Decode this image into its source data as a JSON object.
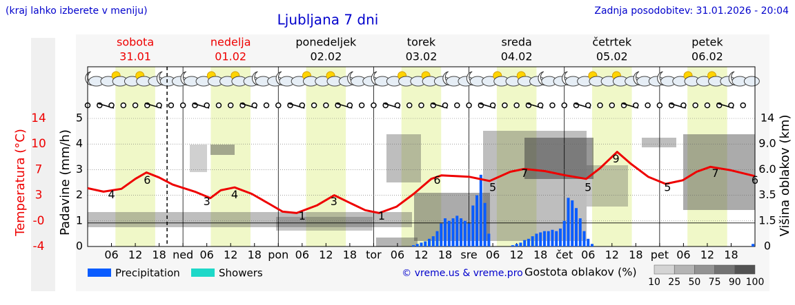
{
  "header": {
    "hint": "(kraj lahko izberete v meniju)",
    "title": "Ljubljana 7 dni",
    "updated": "Zadnja posodobitev: 31.01.2026 - 20:04"
  },
  "chart_data": {
    "type": "meteogram",
    "days": [
      {
        "name": "sobota",
        "date": "31.01",
        "weekend": true
      },
      {
        "name": "nedelja",
        "date": "01.02",
        "weekend": true
      },
      {
        "name": "ponedeljek",
        "date": "02.02",
        "weekend": false
      },
      {
        "name": "torek",
        "date": "03.02",
        "weekend": false
      },
      {
        "name": "sreda",
        "date": "04.02",
        "weekend": false
      },
      {
        "name": "četrtek",
        "date": "05.02",
        "weekend": false
      },
      {
        "name": "petek",
        "date": "06.02",
        "weekend": false
      }
    ],
    "xlim": [
      0,
      168
    ],
    "xticks": [
      {
        "value": 6,
        "label": "06"
      },
      {
        "value": 12,
        "label": "12"
      },
      {
        "value": 18,
        "label": "18"
      },
      {
        "value": 24,
        "label": "ned"
      },
      {
        "value": 30,
        "label": "06"
      },
      {
        "value": 36,
        "label": "12"
      },
      {
        "value": 42,
        "label": "18"
      },
      {
        "value": 48,
        "label": "pon"
      },
      {
        "value": 54,
        "label": "06"
      },
      {
        "value": 60,
        "label": "12"
      },
      {
        "value": 66,
        "label": "18"
      },
      {
        "value": 72,
        "label": "tor"
      },
      {
        "value": 78,
        "label": "06"
      },
      {
        "value": 84,
        "label": "12"
      },
      {
        "value": 90,
        "label": "18"
      },
      {
        "value": 96,
        "label": "sre"
      },
      {
        "value": 102,
        "label": "06"
      },
      {
        "value": 108,
        "label": "12"
      },
      {
        "value": 114,
        "label": "18"
      },
      {
        "value": 120,
        "label": "čet"
      },
      {
        "value": 126,
        "label": "06"
      },
      {
        "value": 132,
        "label": "12"
      },
      {
        "value": 138,
        "label": "18"
      },
      {
        "value": 144,
        "label": "pet"
      },
      {
        "value": 150,
        "label": "06"
      },
      {
        "value": 156,
        "label": "12"
      },
      {
        "value": 162,
        "label": "18"
      }
    ],
    "now_x": 20,
    "daylight": [
      7,
      17
    ],
    "temperature": {
      "axis_label": "Temperatura (°C)",
      "color": "#ee0000",
      "ylim": [
        -4,
        14
      ],
      "yticks": [
        -4,
        {
          "value": -0.4,
          "label": "-0"
        },
        {
          "value": 3.2,
          "label": "3"
        },
        {
          "value": 6.8,
          "label": "7"
        },
        {
          "value": 10.4,
          "label": "10"
        },
        14
      ],
      "x": [
        0,
        4,
        8.5,
        12,
        14.8,
        18,
        21.4,
        27,
        30.9,
        33.5,
        37,
        41.3,
        45.7,
        49.1,
        52.6,
        57.8,
        62.1,
        66.5,
        69.9,
        73.4,
        77.8,
        82.1,
        86.5,
        89.1,
        96,
        101.2,
        106.4,
        109.9,
        115.1,
        120.3,
        125.5,
        129,
        133.3,
        136.8,
        141.1,
        145.5,
        149.8,
        153.3,
        156.8,
        162,
        167.9
      ],
      "values": [
        4.2,
        3.7,
        4.1,
        5.5,
        6.4,
        5.7,
        4.7,
        3.7,
        2.8,
        3.9,
        4.3,
        3.4,
        2.0,
        0.9,
        0.7,
        1.8,
        3.2,
        2.0,
        1.1,
        0.7,
        1.6,
        3.4,
        5.5,
        6.0,
        5.8,
        5.2,
        6.5,
        6.9,
        6.6,
        6.0,
        5.5,
        7.0,
        9.3,
        7.6,
        5.8,
        4.8,
        5.3,
        6.5,
        7.2,
        6.7,
        5.9
      ],
      "labels": {
        "x": [
          6,
          15,
          30,
          37,
          54,
          62,
          74,
          88,
          102,
          110,
          126,
          133,
          146,
          158,
          168
        ],
        "values": [
          4,
          6,
          3,
          4,
          1,
          3,
          1,
          6,
          5,
          7,
          5,
          9,
          5,
          7,
          6
        ]
      }
    },
    "precipitation": {
      "axis_label": "Padavine (mm/h)",
      "ylim": [
        0,
        5
      ],
      "yticks": [
        0,
        1,
        2,
        3,
        4,
        5
      ],
      "x": [
        82,
        83,
        84,
        85,
        86,
        87,
        88,
        89,
        90,
        91,
        92,
        93,
        94,
        95,
        96,
        97,
        98,
        99,
        100,
        101,
        107,
        108,
        109,
        110,
        111,
        112,
        113,
        114,
        115,
        116,
        117,
        118,
        119,
        120,
        121,
        122,
        123,
        124,
        125,
        126,
        127,
        167.5
      ],
      "values": [
        0.05,
        0.1,
        0.15,
        0.2,
        0.3,
        0.4,
        0.6,
        0.9,
        1.1,
        1.0,
        1.1,
        1.2,
        1.1,
        1.0,
        0.9,
        1.6,
        2.0,
        2.8,
        1.7,
        0.5,
        0.05,
        0.1,
        0.15,
        0.25,
        0.3,
        0.4,
        0.5,
        0.55,
        0.6,
        0.6,
        0.65,
        0.6,
        0.7,
        1.0,
        1.9,
        1.8,
        1.5,
        1.1,
        0.6,
        0.3,
        0.1,
        0.1
      ]
    },
    "cloud_height": {
      "axis_label": "Višina oblakov (km)",
      "yticks": [
        0,
        1.5,
        3.5,
        {
          "value": 6,
          "label": "6.0"
        },
        {
          "value": 9,
          "label": "9.0"
        },
        14
      ]
    },
    "legend": [
      {
        "name": "Precipitation",
        "color": "#0a5cff"
      },
      {
        "name": "Showers",
        "color": "#1ed8c8"
      }
    ],
    "credit": "© vreme.us & vreme.pro",
    "cloud_scale": {
      "title": "Gostota oblakov (%)",
      "ticks": [
        10,
        25,
        50,
        75,
        90,
        100
      ],
      "colors": [
        "#d4d4d4",
        "#b4b4b4",
        "#939393",
        "#727272",
        "#525252"
      ]
    }
  }
}
